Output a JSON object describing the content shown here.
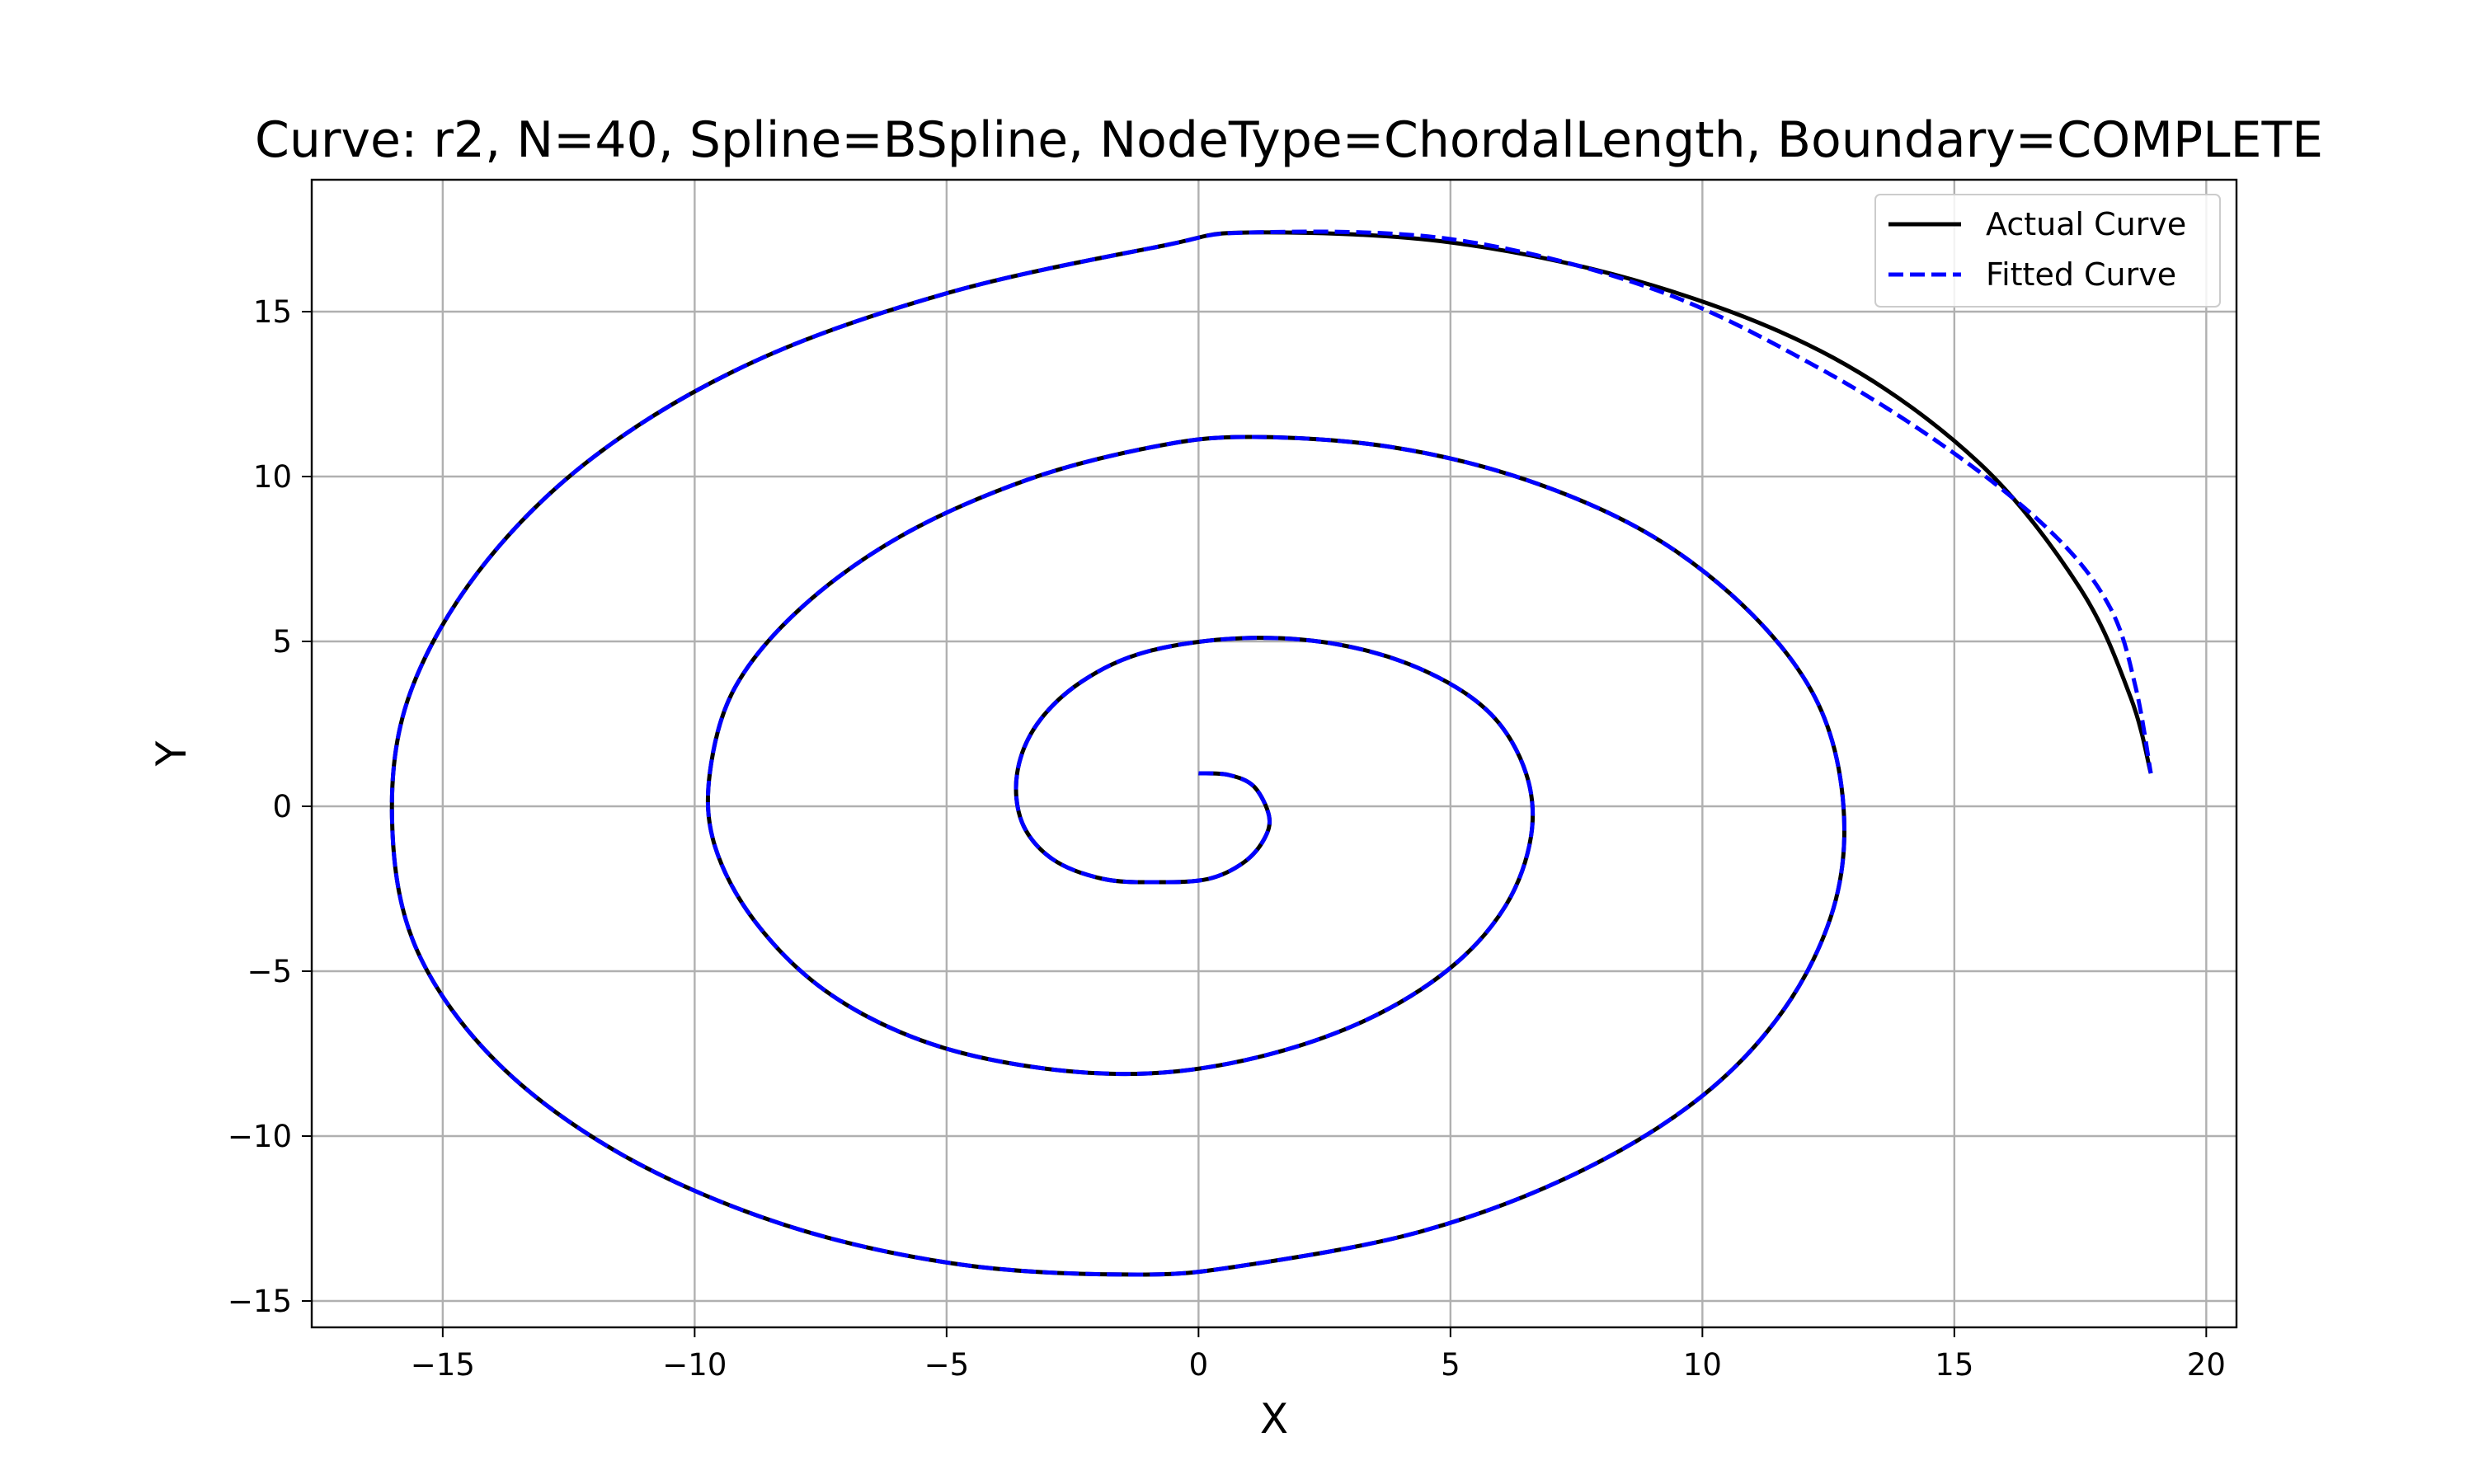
{
  "chart_data": {
    "type": "line",
    "title": "Curve: r2, N=40, Spline=BSpline, NodeType=ChordalLength, Boundary=COMPLETE",
    "xlabel": "X",
    "ylabel": "Y",
    "xlim": [
      -17.6,
      20.6
    ],
    "ylim": [
      -15.8,
      19
    ],
    "xticks": [
      -15,
      -10,
      -5,
      0,
      5,
      10,
      15,
      20
    ],
    "yticks": [
      -15,
      -10,
      -5,
      0,
      5,
      10,
      15
    ],
    "xtick_labels": [
      "−15",
      "−10",
      "−5",
      "0",
      "5",
      "10",
      "15",
      "20"
    ],
    "ytick_labels": [
      "−15",
      "−10",
      "−5",
      "0",
      "5",
      "10",
      "15"
    ],
    "grid": true,
    "legend_position": "top-right",
    "series": [
      {
        "name": "Actual Curve",
        "color": "#000000",
        "style": "solid",
        "points": [
          [
            0.0,
            1.0
          ],
          [
            0.6,
            0.95
          ],
          [
            1.1,
            0.6
          ],
          [
            1.4,
            -0.3
          ],
          [
            1.3,
            -1.0
          ],
          [
            0.9,
            -1.7
          ],
          [
            0.2,
            -2.2
          ],
          [
            -0.8,
            -2.3
          ],
          [
            -1.9,
            -2.2
          ],
          [
            -2.9,
            -1.6
          ],
          [
            -3.5,
            -0.5
          ],
          [
            -3.6,
            1.0
          ],
          [
            -3.2,
            2.5
          ],
          [
            -2.3,
            3.8
          ],
          [
            -1.0,
            4.7
          ],
          [
            0.9,
            5.1
          ],
          [
            2.8,
            4.9
          ],
          [
            4.5,
            4.1
          ],
          [
            5.8,
            2.8
          ],
          [
            6.5,
            1.0
          ],
          [
            6.6,
            -0.9
          ],
          [
            6.1,
            -3.0
          ],
          [
            5.0,
            -4.9
          ],
          [
            3.3,
            -6.5
          ],
          [
            1.2,
            -7.6
          ],
          [
            -1.0,
            -8.1
          ],
          [
            -3.3,
            -7.9
          ],
          [
            -5.5,
            -7.1
          ],
          [
            -7.4,
            -5.6
          ],
          [
            -8.8,
            -3.5
          ],
          [
            -9.6,
            -1.2
          ],
          [
            -9.7,
            1.0
          ],
          [
            -9.2,
            3.6
          ],
          [
            -7.9,
            6.0
          ],
          [
            -5.9,
            8.2
          ],
          [
            -3.4,
            9.9
          ],
          [
            -0.9,
            10.9
          ],
          [
            1.0,
            11.2
          ],
          [
            3.8,
            10.9
          ],
          [
            6.5,
            9.9
          ],
          [
            9.0,
            8.2
          ],
          [
            11.0,
            5.8
          ],
          [
            12.3,
            3.1
          ],
          [
            12.8,
            0.0
          ],
          [
            12.6,
            -3.1
          ],
          [
            11.6,
            -6.2
          ],
          [
            9.9,
            -8.9
          ],
          [
            7.4,
            -11.2
          ],
          [
            4.4,
            -12.9
          ],
          [
            1.0,
            -13.9
          ],
          [
            -1.2,
            -14.2
          ],
          [
            -4.7,
            -13.9
          ],
          [
            -8.2,
            -12.7
          ],
          [
            -11.4,
            -10.6
          ],
          [
            -13.9,
            -7.8
          ],
          [
            -15.5,
            -4.4
          ],
          [
            -16.0,
            -0.7
          ],
          [
            -15.7,
            3.2
          ],
          [
            -14.3,
            7.1
          ],
          [
            -12.0,
            10.6
          ],
          [
            -8.8,
            13.5
          ],
          [
            -4.9,
            15.6
          ],
          [
            -0.7,
            17.0
          ],
          [
            1.0,
            17.4
          ],
          [
            5.0,
            17.1
          ],
          [
            9.0,
            15.8
          ],
          [
            12.6,
            13.6
          ],
          [
            15.5,
            10.4
          ],
          [
            17.5,
            6.6
          ],
          [
            18.5,
            3.3
          ],
          [
            18.9,
            1.0
          ]
        ]
      },
      {
        "name": "Fitted Curve",
        "color": "#0000ff",
        "style": "dashed",
        "points": [
          [
            0.0,
            1.0
          ],
          [
            0.6,
            0.95
          ],
          [
            1.1,
            0.6
          ],
          [
            1.4,
            -0.3
          ],
          [
            1.3,
            -1.0
          ],
          [
            0.9,
            -1.7
          ],
          [
            0.2,
            -2.2
          ],
          [
            -0.8,
            -2.3
          ],
          [
            -1.9,
            -2.2
          ],
          [
            -2.9,
            -1.6
          ],
          [
            -3.5,
            -0.5
          ],
          [
            -3.6,
            1.0
          ],
          [
            -3.2,
            2.5
          ],
          [
            -2.3,
            3.8
          ],
          [
            -1.0,
            4.7
          ],
          [
            0.9,
            5.1
          ],
          [
            2.8,
            4.9
          ],
          [
            4.5,
            4.1
          ],
          [
            5.8,
            2.8
          ],
          [
            6.5,
            1.0
          ],
          [
            6.6,
            -0.9
          ],
          [
            6.1,
            -3.0
          ],
          [
            5.0,
            -4.9
          ],
          [
            3.3,
            -6.5
          ],
          [
            1.2,
            -7.6
          ],
          [
            -1.0,
            -8.1
          ],
          [
            -3.3,
            -7.9
          ],
          [
            -5.5,
            -7.1
          ],
          [
            -7.4,
            -5.6
          ],
          [
            -8.8,
            -3.5
          ],
          [
            -9.6,
            -1.2
          ],
          [
            -9.7,
            1.0
          ],
          [
            -9.2,
            3.6
          ],
          [
            -7.9,
            6.0
          ],
          [
            -5.9,
            8.2
          ],
          [
            -3.4,
            9.9
          ],
          [
            -0.9,
            10.9
          ],
          [
            1.0,
            11.2
          ],
          [
            3.8,
            10.9
          ],
          [
            6.5,
            9.9
          ],
          [
            9.0,
            8.2
          ],
          [
            11.0,
            5.8
          ],
          [
            12.3,
            3.1
          ],
          [
            12.8,
            0.0
          ],
          [
            12.6,
            -3.1
          ],
          [
            11.6,
            -6.2
          ],
          [
            9.9,
            -8.9
          ],
          [
            7.4,
            -11.2
          ],
          [
            4.4,
            -12.9
          ],
          [
            1.0,
            -13.9
          ],
          [
            -1.2,
            -14.2
          ],
          [
            -4.7,
            -13.9
          ],
          [
            -8.2,
            -12.7
          ],
          [
            -11.4,
            -10.6
          ],
          [
            -13.9,
            -7.8
          ],
          [
            -15.5,
            -4.4
          ],
          [
            -16.0,
            -0.7
          ],
          [
            -15.7,
            3.2
          ],
          [
            -14.3,
            7.1
          ],
          [
            -12.0,
            10.6
          ],
          [
            -8.8,
            13.5
          ],
          [
            -4.9,
            15.6
          ],
          [
            -0.7,
            17.0
          ],
          [
            1.0,
            17.4
          ],
          [
            5.0,
            17.2
          ],
          [
            9.0,
            15.7
          ],
          [
            12.3,
            13.3
          ],
          [
            15.0,
            10.7
          ],
          [
            17.0,
            8.2
          ],
          [
            18.1,
            6.0
          ],
          [
            18.6,
            3.6
          ],
          [
            18.9,
            1.0
          ]
        ]
      }
    ]
  }
}
